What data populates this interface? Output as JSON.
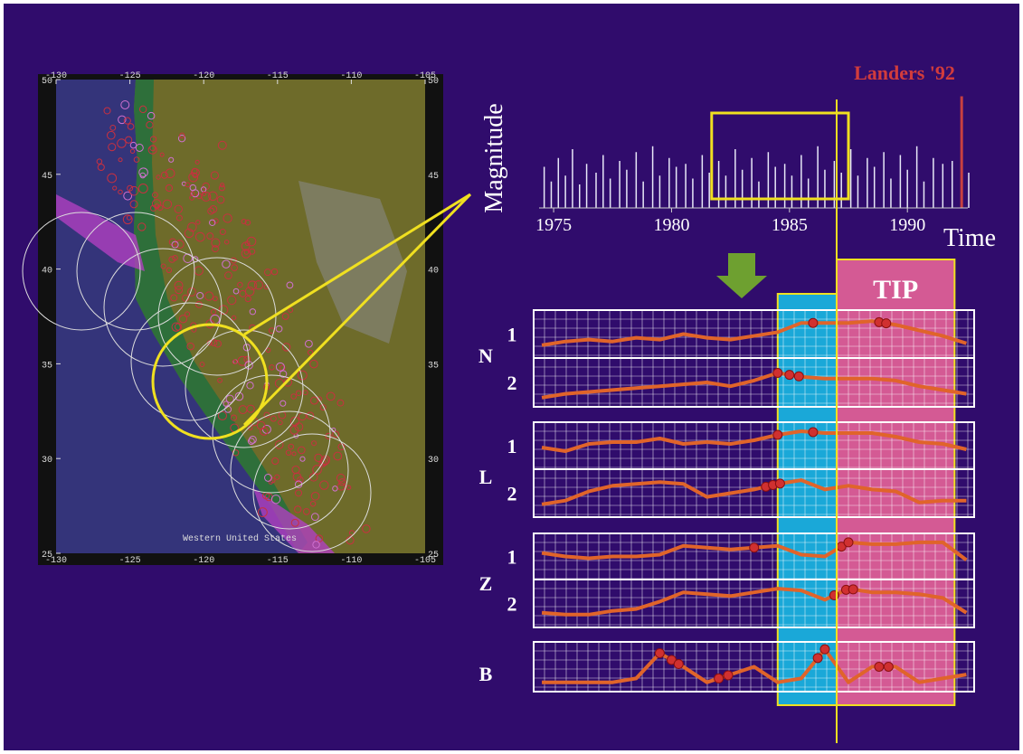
{
  "map": {
    "caption": "Western United States",
    "xticks": [
      -130,
      -125,
      -120,
      -115,
      -110,
      -105
    ],
    "yticks": [
      25,
      30,
      35,
      40,
      45,
      50
    ]
  },
  "chart_data": {
    "type": "line",
    "annotation": "Landers '92",
    "ylabel": "Magnitude",
    "xlabel": "Time",
    "tip_label": "TIP",
    "xlim": [
      1974,
      1992.6
    ],
    "xticks": [
      1975,
      1980,
      1985,
      1990
    ],
    "magnitude_ylim": [
      3.5,
      7.5
    ],
    "events": {
      "x": [
        1974.6,
        1974.9,
        1975.2,
        1975.5,
        1975.8,
        1976.1,
        1976.4,
        1976.8,
        1977.1,
        1977.4,
        1977.8,
        1978.1,
        1978.5,
        1978.8,
        1979.2,
        1979.5,
        1979.9,
        1980.2,
        1980.6,
        1980.9,
        1981.3,
        1981.6,
        1982.0,
        1982.3,
        1982.7,
        1983.0,
        1983.4,
        1983.7,
        1984.1,
        1984.4,
        1984.8,
        1985.1,
        1985.5,
        1985.8,
        1986.2,
        1986.5,
        1986.9,
        1987.2,
        1987.6,
        1987.9,
        1988.3,
        1988.6,
        1989.0,
        1989.3,
        1989.7,
        1990.0,
        1990.4,
        1990.7,
        1991.1,
        1991.5,
        1991.9,
        1992.3,
        1992.6
      ],
      "magnitude": [
        4.9,
        4.4,
        5.2,
        4.6,
        5.5,
        4.3,
        5.0,
        4.7,
        5.3,
        4.5,
        5.1,
        4.8,
        5.4,
        4.4,
        5.6,
        4.6,
        5.2,
        4.9,
        5.0,
        4.5,
        5.3,
        4.7,
        5.1,
        4.6,
        5.5,
        4.8,
        5.2,
        4.4,
        5.4,
        4.9,
        5.0,
        4.6,
        5.3,
        4.5,
        5.6,
        4.8,
        5.1,
        4.7,
        5.5,
        4.6,
        5.2,
        4.9,
        5.4,
        4.5,
        5.3,
        4.8,
        5.6,
        4.4,
        5.2,
        5.0,
        5.1,
        7.3,
        4.7
      ]
    },
    "zoom_box": [
      1981.7,
      1987.5
    ],
    "alarm_period": [
      1984.5,
      1987
    ],
    "tip_period": [
      1987,
      1992
    ],
    "x": [
      1974.5,
      1975.5,
      1976.5,
      1977.5,
      1978.5,
      1979.5,
      1980.5,
      1981.5,
      1982.5,
      1983.5,
      1984.5,
      1985.5,
      1986.5,
      1987.5,
      1988.5,
      1989.5,
      1990.5,
      1991.5,
      1992.5
    ],
    "ylim": [
      0,
      1
    ],
    "series": [
      {
        "group": "N",
        "name": "1",
        "color": "#e0642a",
        "values": [
          0.2,
          0.3,
          0.35,
          0.3,
          0.4,
          0.35,
          0.5,
          0.4,
          0.35,
          0.45,
          0.55,
          0.8,
          0.8,
          0.8,
          0.85,
          0.75,
          0.6,
          0.45,
          0.25
        ],
        "alarms": [
          1986.0,
          1988.8,
          1989.1
        ]
      },
      {
        "group": "N",
        "name": "2",
        "color": "#e0642a",
        "values": [
          0.1,
          0.2,
          0.25,
          0.3,
          0.35,
          0.4,
          0.45,
          0.5,
          0.4,
          0.55,
          0.75,
          0.65,
          0.6,
          0.6,
          0.6,
          0.55,
          0.4,
          0.3,
          0.2
        ],
        "alarms": [
          1984.5,
          1985.0,
          1985.4
        ]
      },
      {
        "group": "L",
        "name": "1",
        "color": "#e0642a",
        "values": [
          0.45,
          0.35,
          0.55,
          0.6,
          0.6,
          0.7,
          0.55,
          0.6,
          0.55,
          0.65,
          0.8,
          0.9,
          0.85,
          0.85,
          0.85,
          0.75,
          0.6,
          0.55,
          0.4
        ],
        "alarms": [
          1984.5,
          1986.0
        ]
      },
      {
        "group": "L",
        "name": "2",
        "color": "#e0642a",
        "values": [
          0.2,
          0.3,
          0.55,
          0.7,
          0.75,
          0.8,
          0.75,
          0.4,
          0.5,
          0.6,
          0.75,
          0.85,
          0.6,
          0.7,
          0.6,
          0.55,
          0.25,
          0.3,
          0.3
        ],
        "alarms": [
          1984.0,
          1984.3,
          1984.6
        ]
      },
      {
        "group": "Z",
        "name": "1",
        "color": "#e0642a",
        "values": [
          0.6,
          0.5,
          0.45,
          0.5,
          0.5,
          0.55,
          0.8,
          0.75,
          0.7,
          0.75,
          0.8,
          0.55,
          0.5,
          0.9,
          0.85,
          0.85,
          0.9,
          0.9,
          0.4
        ],
        "alarms": [
          1983.5,
          1987.2,
          1987.5
        ]
      },
      {
        "group": "Z",
        "name": "2",
        "color": "#e0642a",
        "values": [
          0.25,
          0.2,
          0.2,
          0.3,
          0.35,
          0.55,
          0.8,
          0.75,
          0.7,
          0.8,
          0.9,
          0.85,
          0.6,
          0.9,
          0.8,
          0.8,
          0.75,
          0.65,
          0.25
        ],
        "alarms": [
          1986.9,
          1987.4,
          1987.7
        ]
      },
      {
        "group": "B",
        "name": null,
        "color": "#e0642a",
        "values": [
          0.1,
          0.1,
          0.1,
          0.1,
          0.2,
          0.85,
          0.5,
          0.1,
          0.3,
          0.5,
          0.1,
          0.2,
          0.95,
          0.1,
          0.5,
          0.5,
          0.1,
          0.2,
          0.3
        ],
        "alarms": [
          1979.5,
          1980.0,
          1980.3,
          1982.0,
          1982.4,
          1986.2,
          1986.5,
          1988.8,
          1989.2
        ]
      }
    ]
  }
}
